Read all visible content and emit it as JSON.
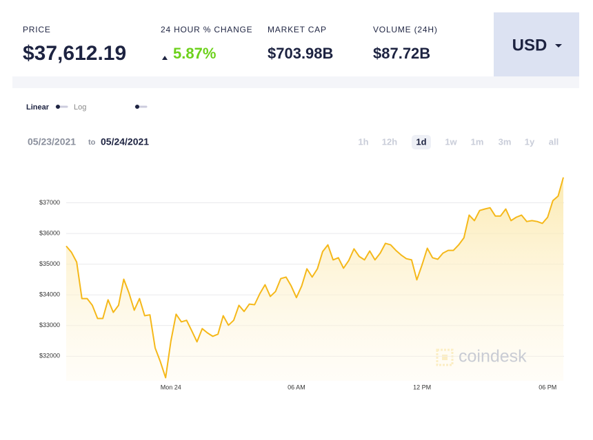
{
  "header": {
    "stats": [
      {
        "label": "PRICE",
        "value": "$37,612.19"
      },
      {
        "label": "24 HOUR % CHANGE",
        "value": "5.87%"
      },
      {
        "label": "MARKET CAP",
        "value": "$703.98B"
      },
      {
        "label": "VOLUME (24H)",
        "value": "$87.72B"
      }
    ],
    "currency": "USD"
  },
  "controls": {
    "scales": [
      "Linear",
      "Log"
    ],
    "date_from": "05/23/2021",
    "date_sep": "to",
    "date_to": "05/24/2021",
    "ranges": [
      "1h",
      "12h",
      "1d",
      "1w",
      "1m",
      "3m",
      "1y",
      "all"
    ],
    "active_range": "1d"
  },
  "chart_data": {
    "type": "area",
    "color": "#f5b819",
    "grid": true,
    "watermark": "coindesk",
    "categories": [
      null,
      null,
      null,
      null,
      null,
      null,
      null,
      null,
      null,
      null,
      null,
      null,
      null,
      null,
      null,
      null,
      null,
      null,
      null,
      null,
      "Mon 24",
      null,
      null,
      null,
      null,
      null,
      null,
      null,
      null,
      null,
      null,
      null,
      null,
      null,
      null,
      null,
      null,
      null,
      null,
      null,
      null,
      null,
      null,
      null,
      "06 AM",
      null,
      null,
      null,
      null,
      null,
      null,
      null,
      null,
      null,
      null,
      null,
      null,
      null,
      null,
      null,
      null,
      null,
      null,
      null,
      null,
      null,
      null,
      null,
      "12 PM",
      null,
      null,
      null,
      null,
      null,
      null,
      null,
      null,
      null,
      null,
      null,
      null,
      null,
      null,
      null,
      null,
      null,
      null,
      null,
      null,
      null,
      null,
      null,
      "06 PM",
      null,
      null,
      null
    ],
    "values": [
      35590,
      35390,
      35070,
      33880,
      33880,
      33660,
      33230,
      33230,
      33840,
      33430,
      33660,
      34510,
      34060,
      33500,
      33880,
      33320,
      33350,
      32270,
      31820,
      31300,
      32490,
      33370,
      33120,
      33170,
      32830,
      32470,
      32900,
      32760,
      32650,
      32720,
      33320,
      33010,
      33170,
      33660,
      33460,
      33700,
      33680,
      34040,
      34330,
      33950,
      34110,
      34530,
      34580,
      34290,
      33910,
      34290,
      34850,
      34580,
      34850,
      35410,
      35630,
      35140,
      35210,
      34870,
      35120,
      35500,
      35250,
      35140,
      35430,
      35140,
      35360,
      35680,
      35630,
      35450,
      35300,
      35180,
      35140,
      34490,
      34980,
      35520,
      35210,
      35160,
      35360,
      35450,
      35450,
      35630,
      35860,
      36600,
      36420,
      36750,
      36800,
      36840,
      36570,
      36570,
      36800,
      36420,
      36530,
      36600,
      36390,
      36420,
      36390,
      36330,
      36530,
      37070,
      37220,
      37830
    ],
    "ylim": [
      31200,
      38000
    ],
    "yticks": [
      {
        "value": 32000,
        "label": "$32000"
      },
      {
        "value": 33000,
        "label": "$33000"
      },
      {
        "value": 34000,
        "label": "$34000"
      },
      {
        "value": 35000,
        "label": "$35000"
      },
      {
        "value": 36000,
        "label": "$36000"
      },
      {
        "value": 37000,
        "label": "$37000"
      }
    ]
  }
}
